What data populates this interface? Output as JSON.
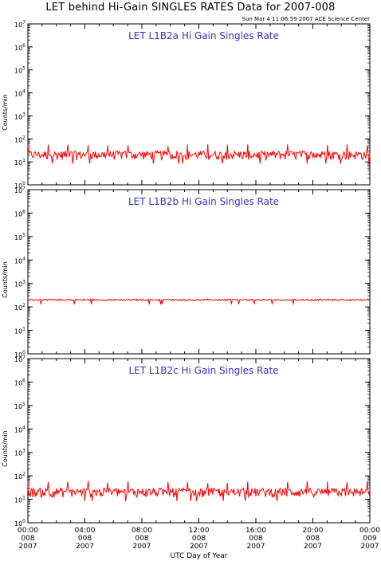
{
  "header": {
    "title": "LET behind Hi-Gain SINGLES RATES Data for 2007-008",
    "timestamp": "Sun Mar  4 11:06:59 2007 ACE Science Center"
  },
  "colors": {
    "series": "#ff0000",
    "panel_label": "#3333cc",
    "axes": "#000000"
  },
  "chart_data": [
    {
      "type": "line",
      "title": "LET L1B2a Hi Gain Singles Rate",
      "ylabel": "Counts/min",
      "yscale": "log",
      "ylim": [
        1,
        10000000
      ],
      "y_tick_labels": [
        "10^0",
        "10^1",
        "10^2",
        "10^3",
        "10^4",
        "10^5",
        "10^6",
        "10^7"
      ],
      "series": [
        {
          "baseline": 20,
          "noise_low": 12,
          "noise_high": 30,
          "periodic_spikes": {
            "period_hours": 1.4,
            "peak": 60
          }
        }
      ]
    },
    {
      "type": "line",
      "title": "LET L1B2b Hi Gain Singles Rate",
      "ylabel": "Counts/min",
      "yscale": "log",
      "ylim": [
        1,
        10000000
      ],
      "y_tick_labels": [
        "10^0",
        "10^1",
        "10^2",
        "10^3",
        "10^4",
        "10^5",
        "10^6",
        "10^7"
      ],
      "series": [
        {
          "baseline": 200,
          "noise_low": 185,
          "noise_high": 215,
          "periodic_spikes": {
            "period_hours": 1.4,
            "peak": 230
          }
        }
      ]
    },
    {
      "type": "line",
      "title": "LET L1B2c Hi Gain Singles Rate",
      "ylabel": "Counts/min",
      "yscale": "log",
      "ylim": [
        1,
        10000000
      ],
      "y_tick_labels": [
        "10^0",
        "10^1",
        "10^2",
        "10^3",
        "10^4",
        "10^5",
        "10^6",
        "10^7"
      ],
      "series": [
        {
          "baseline": 20,
          "noise_low": 12,
          "noise_high": 30,
          "periodic_spikes": {
            "period_hours": 1.4,
            "peak": 60
          }
        }
      ]
    }
  ],
  "x_axis": {
    "label": "UTC Day of Year",
    "ticks": [
      {
        "time": "00:00",
        "doy": "008",
        "year": "2007"
      },
      {
        "time": "04:00",
        "doy": "008",
        "year": "2007"
      },
      {
        "time": "08:00",
        "doy": "008",
        "year": "2007"
      },
      {
        "time": "12:00",
        "doy": "008",
        "year": "2007"
      },
      {
        "time": "16:00",
        "doy": "008",
        "year": "2007"
      },
      {
        "time": "20:00",
        "doy": "008",
        "year": "2007"
      },
      {
        "time": "00:00",
        "doy": "009",
        "year": "2007"
      }
    ]
  }
}
